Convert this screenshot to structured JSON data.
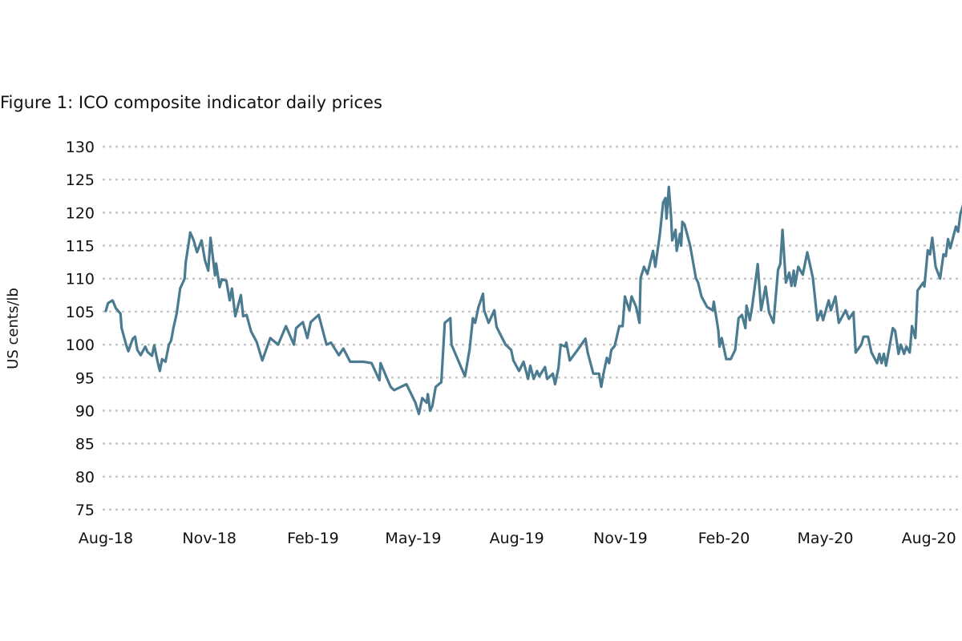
{
  "chart_data": {
    "type": "line",
    "title": "Figure 1: ICO composite indicator daily prices",
    "xlabel": "",
    "ylabel": "US cents/lb",
    "ylim": [
      75,
      130
    ],
    "yticks": [
      75,
      80,
      85,
      90,
      95,
      100,
      105,
      110,
      115,
      120,
      125,
      130
    ],
    "xlim": [
      "2018-08-01",
      "2020-09-01"
    ],
    "xticks": [
      {
        "date": "2018-08-01",
        "label": "Aug-18"
      },
      {
        "date": "2018-11-01",
        "label": "Nov-18"
      },
      {
        "date": "2019-02-01",
        "label": "Feb-19"
      },
      {
        "date": "2019-05-01",
        "label": "May-19"
      },
      {
        "date": "2019-08-01",
        "label": "Aug-19"
      },
      {
        "date": "2019-11-01",
        "label": "Nov-19"
      },
      {
        "date": "2020-02-01",
        "label": "Feb-20"
      },
      {
        "date": "2020-05-01",
        "label": "May-20"
      },
      {
        "date": "2020-08-01",
        "label": "Aug-20"
      }
    ],
    "grid": "horizontal dotted",
    "line_color": "#4b7b91",
    "grid_color": "#c8c8c8",
    "series": [
      {
        "x": [
          "2018-08-01",
          "2018-08-03",
          "2018-08-07",
          "2018-08-10",
          "2018-08-14",
          "2018-08-15",
          "2018-08-19",
          "2018-08-21",
          "2018-08-25",
          "2018-08-27",
          "2018-08-29",
          "2018-09-01",
          "2018-09-05",
          "2018-09-07",
          "2018-09-11",
          "2018-09-13",
          "2018-09-16",
          "2018-09-18",
          "2018-09-20",
          "2018-09-23",
          "2018-09-26",
          "2018-09-28",
          "2018-09-30",
          "2018-10-03",
          "2018-10-06",
          "2018-10-10",
          "2018-10-11",
          "2018-10-14",
          "2018-10-15",
          "2018-10-18",
          "2018-10-21",
          "2018-10-25",
          "2018-10-28",
          "2018-10-31",
          "2018-11-02",
          "2018-11-06",
          "2018-11-07",
          "2018-11-10",
          "2018-11-12",
          "2018-11-16",
          "2018-11-19",
          "2018-11-21",
          "2018-11-24",
          "2018-11-29",
          "2018-12-01",
          "2018-12-04",
          "2018-12-08",
          "2018-12-13",
          "2018-12-18",
          "2018-12-25",
          "2019-01-01",
          "2019-01-05",
          "2019-01-08",
          "2019-01-15",
          "2019-01-17",
          "2019-01-23",
          "2019-01-27",
          "2019-01-30",
          "2019-02-06",
          "2019-02-13",
          "2019-02-17",
          "2019-02-24",
          "2019-02-28",
          "2019-03-06",
          "2019-03-18",
          "2019-03-25",
          "2019-04-01",
          "2019-04-02",
          "2019-04-11",
          "2019-04-14",
          "2019-04-25",
          "2019-05-03",
          "2019-05-06",
          "2019-05-09",
          "2019-05-13",
          "2019-05-14",
          "2019-05-16",
          "2019-05-18",
          "2019-05-21",
          "2019-05-26",
          "2019-05-29",
          "2019-06-03",
          "2019-06-04",
          "2019-06-10",
          "2019-06-16",
          "2019-06-20",
          "2019-06-23",
          "2019-06-25",
          "2019-06-28",
          "2019-07-02",
          "2019-07-03",
          "2019-07-07",
          "2019-07-12",
          "2019-07-14",
          "2019-07-22",
          "2019-07-27",
          "2019-07-29",
          "2019-08-03",
          "2019-08-07",
          "2019-08-11",
          "2019-08-13",
          "2019-08-16",
          "2019-08-19",
          "2019-08-21",
          "2019-08-26",
          "2019-08-28",
          "2019-09-02",
          "2019-09-04",
          "2019-09-07",
          "2019-09-09",
          "2019-09-13",
          "2019-09-14",
          "2019-09-17",
          "2019-09-24",
          "2019-10-01",
          "2019-10-03",
          "2019-10-08",
          "2019-10-13",
          "2019-10-15",
          "2019-10-17",
          "2019-10-20",
          "2019-10-22",
          "2019-10-24",
          "2019-10-27",
          "2019-10-31",
          "2019-11-03",
          "2019-11-05",
          "2019-11-09",
          "2019-11-11",
          "2019-11-15",
          "2019-11-18",
          "2019-11-19",
          "2019-11-22",
          "2019-11-25",
          "2019-11-30",
          "2019-12-02",
          "2019-12-06",
          "2019-12-09",
          "2019-12-11",
          "2019-12-12",
          "2019-12-14",
          "2019-12-16",
          "2019-12-17",
          "2019-12-20",
          "2019-12-21",
          "2019-12-24",
          "2019-12-25",
          "2019-12-26",
          "2019-12-28",
          "2020-01-02",
          "2020-01-07",
          "2020-01-09",
          "2020-01-12",
          "2020-01-17",
          "2020-01-22",
          "2020-01-23",
          "2020-01-27",
          "2020-01-28",
          "2020-01-30",
          "2020-02-03",
          "2020-02-07",
          "2020-02-11",
          "2020-02-14",
          "2020-02-17",
          "2020-02-20",
          "2020-02-21",
          "2020-02-24",
          "2020-02-26",
          "2020-03-02",
          "2020-03-05",
          "2020-03-09",
          "2020-03-12",
          "2020-03-16",
          "2020-03-20",
          "2020-03-22",
          "2020-03-24",
          "2020-03-27",
          "2020-03-30",
          "2020-04-01",
          "2020-04-03",
          "2020-04-04",
          "2020-04-07",
          "2020-04-11",
          "2020-04-15",
          "2020-04-20",
          "2020-04-22",
          "2020-04-24",
          "2020-04-27",
          "2020-04-29",
          "2020-05-04",
          "2020-05-06",
          "2020-05-10",
          "2020-05-13",
          "2020-05-19",
          "2020-05-22",
          "2020-05-26",
          "2020-05-28",
          "2020-06-02",
          "2020-06-04",
          "2020-06-08",
          "2020-06-11",
          "2020-06-16",
          "2020-06-18",
          "2020-06-20",
          "2020-06-22",
          "2020-06-24",
          "2020-06-30",
          "2020-07-02",
          "2020-07-05",
          "2020-07-07",
          "2020-07-10",
          "2020-07-12",
          "2020-07-15",
          "2020-07-17",
          "2020-07-20",
          "2020-07-22",
          "2020-07-27",
          "2020-07-28",
          "2020-07-31",
          "2020-08-02",
          "2020-08-04",
          "2020-08-07",
          "2020-08-11",
          "2020-08-14",
          "2020-08-16",
          "2020-08-18",
          "2020-08-20",
          "2020-08-25",
          "2020-08-27",
          "2020-08-29",
          "2020-09-01"
        ],
        "y": [
          105.1,
          106.3,
          106.7,
          105.5,
          104.7,
          102.5,
          100.0,
          99.0,
          100.9,
          101.2,
          99.2,
          98.4,
          99.7,
          98.9,
          98.3,
          99.9,
          97.4,
          96.0,
          97.8,
          97.4,
          100.0,
          100.6,
          102.5,
          104.8,
          108.5,
          110.0,
          112.5,
          115.8,
          117.0,
          115.8,
          114.0,
          115.8,
          112.8,
          111.2,
          116.2,
          110.5,
          112.3,
          108.7,
          109.9,
          109.7,
          106.7,
          108.5,
          104.3,
          107.5,
          104.3,
          104.5,
          102.0,
          100.4,
          97.6,
          101.0,
          100.0,
          101.6,
          102.8,
          100.0,
          102.5,
          103.4,
          101.0,
          103.4,
          104.5,
          100.0,
          100.3,
          98.4,
          99.4,
          97.4,
          97.4,
          97.2,
          94.6,
          97.2,
          93.6,
          93.1,
          94.0,
          91.2,
          89.5,
          91.9,
          91.2,
          92.5,
          90.0,
          90.7,
          93.6,
          94.3,
          103.3,
          104.0,
          100.0,
          97.6,
          95.2,
          99.2,
          104.0,
          103.3,
          105.7,
          107.7,
          105.2,
          103.3,
          105.2,
          102.7,
          100.0,
          99.2,
          97.6,
          96.0,
          97.4,
          94.8,
          96.8,
          94.8,
          96.0,
          95.2,
          96.6,
          94.8,
          95.6,
          94.0,
          96.4,
          100.0,
          99.7,
          100.3,
          97.6,
          99.2,
          100.9,
          98.8,
          95.6,
          95.6,
          93.6,
          95.6,
          98.0,
          97.2,
          99.2,
          99.8,
          102.8,
          102.8,
          107.3,
          105.2,
          107.3,
          105.7,
          103.3,
          110.1,
          111.8,
          110.7,
          114.2,
          111.8,
          116.6,
          121.5,
          122.2,
          119.1,
          123.9,
          119.4,
          115.8,
          117.4,
          114.2,
          116.8,
          115.0,
          118.6,
          118.2,
          115.0,
          110.1,
          109.4,
          107.3,
          105.7,
          105.2,
          106.5,
          102.2,
          99.7,
          101.0,
          97.8,
          97.8,
          99.2,
          104.0,
          104.5,
          102.5,
          105.9,
          103.7,
          105.7,
          112.2,
          105.2,
          108.8,
          104.9,
          103.3,
          111.3,
          112.2,
          117.4,
          109.4,
          110.9,
          108.9,
          111.2,
          108.9,
          111.8,
          110.6,
          114.0,
          110.1,
          106.9,
          103.7,
          105.1,
          103.7,
          106.7,
          105.2,
          107.3,
          103.3,
          105.2,
          103.9,
          104.9,
          98.8,
          100.0,
          101.2,
          101.2,
          98.8,
          97.2,
          98.6,
          97.2,
          98.6,
          96.8,
          102.5,
          102.1,
          98.6,
          100.0,
          98.6,
          99.7,
          98.8,
          102.8,
          101.0,
          108.2,
          109.4,
          108.8,
          114.3,
          113.7,
          116.2,
          111.8,
          110.0,
          113.7,
          113.4,
          116.0,
          114.6,
          117.9,
          117.1,
          119.8,
          121.5
        ]
      }
    ]
  }
}
